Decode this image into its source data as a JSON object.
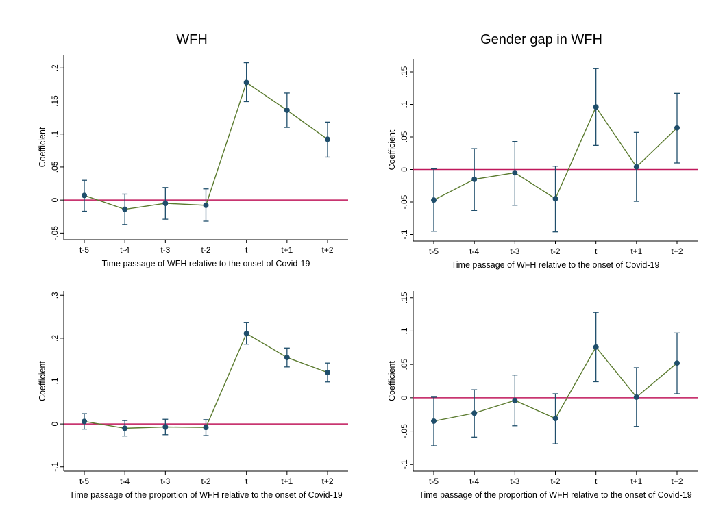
{
  "titles": {
    "left": "WFH",
    "right": "Gender gap in WFH"
  },
  "colors": {
    "line": "#5a7a2e",
    "marker": "#1f4e6b",
    "errbar": "#1f4e6b",
    "zero": "#c0185b",
    "axis": "#000000"
  },
  "chart_data": [
    {
      "type": "line",
      "panel": "top-left",
      "categories": [
        "t-5",
        "t-4",
        "t-3",
        "t-2",
        "t",
        "t+1",
        "t+2"
      ],
      "values": [
        0.007,
        -0.014,
        -0.005,
        -0.008,
        0.178,
        0.136,
        0.092
      ],
      "ci_low": [
        -0.017,
        -0.037,
        -0.029,
        -0.032,
        0.149,
        0.11,
        0.065
      ],
      "ci_high": [
        0.03,
        0.009,
        0.019,
        0.017,
        0.208,
        0.162,
        0.118
      ],
      "ylabel": "Coefficient",
      "xlabel": "Time passage of WFH relative to the onset of Covid-19",
      "ylim": [
        -0.06,
        0.22
      ],
      "yticks": [
        -0.05,
        0,
        0.05,
        0.1,
        0.15,
        0.2
      ],
      "yticklabels": [
        "-.05",
        "0",
        ".05",
        ".1",
        ".15",
        ".2"
      ],
      "zero_line": 0
    },
    {
      "type": "line",
      "panel": "top-right",
      "categories": [
        "t-5",
        "t-4",
        "t-3",
        "t-2",
        "t",
        "t+1",
        "t+2"
      ],
      "values": [
        -0.047,
        -0.015,
        -0.005,
        -0.045,
        0.096,
        0.004,
        0.064
      ],
      "ci_low": [
        -0.095,
        -0.063,
        -0.055,
        -0.096,
        0.037,
        -0.049,
        0.01
      ],
      "ci_high": [
        0.001,
        0.032,
        0.043,
        0.005,
        0.155,
        0.057,
        0.117
      ],
      "ylabel": "Coefficient",
      "xlabel": "Time passage of WFH relative to the onset of Covid-19",
      "ylim": [
        -0.11,
        0.17
      ],
      "yticks": [
        -0.1,
        -0.05,
        0,
        0.05,
        0.1,
        0.15
      ],
      "yticklabels": [
        "-.1",
        "-.05",
        "0",
        ".05",
        ".1",
        ".15"
      ],
      "zero_line": 0
    },
    {
      "type": "line",
      "panel": "bottom-left",
      "categories": [
        "t-5",
        "t-4",
        "t-3",
        "t-2",
        "t",
        "t+1",
        "t+2"
      ],
      "values": [
        0.006,
        -0.01,
        -0.007,
        -0.008,
        0.211,
        0.155,
        0.12
      ],
      "ci_low": [
        -0.012,
        -0.028,
        -0.025,
        -0.027,
        0.186,
        0.133,
        0.098
      ],
      "ci_high": [
        0.024,
        0.008,
        0.011,
        0.01,
        0.237,
        0.177,
        0.142
      ],
      "ylabel": "Coefficient",
      "xlabel": "Time passage of the proportion of WFH relative to the onset of Covid-19",
      "ylim": [
        -0.11,
        0.31
      ],
      "yticks": [
        -0.1,
        0,
        0.1,
        0.2,
        0.3
      ],
      "yticklabels": [
        "-.1",
        "0",
        ".1",
        ".2",
        ".3"
      ],
      "zero_line": 0
    },
    {
      "type": "line",
      "panel": "bottom-right",
      "categories": [
        "t-5",
        "t-4",
        "t-3",
        "t-2",
        "t",
        "t+1",
        "t+2"
      ],
      "values": [
        -0.035,
        -0.023,
        -0.004,
        -0.031,
        0.076,
        0.001,
        0.052
      ],
      "ci_low": [
        -0.072,
        -0.059,
        -0.042,
        -0.069,
        0.024,
        -0.043,
        0.006
      ],
      "ci_high": [
        0.001,
        0.012,
        0.034,
        0.006,
        0.128,
        0.045,
        0.097
      ],
      "ylabel": "Coefficient",
      "xlabel": "Time passage of the proportion of WFH relative to the onset of Covid-19",
      "ylim": [
        -0.11,
        0.16
      ],
      "yticks": [
        -0.1,
        -0.05,
        0,
        0.05,
        0.1,
        0.15
      ],
      "yticklabels": [
        "-.1",
        "-.05",
        "0",
        ".05",
        ".1",
        ".15"
      ],
      "zero_line": 0
    }
  ]
}
